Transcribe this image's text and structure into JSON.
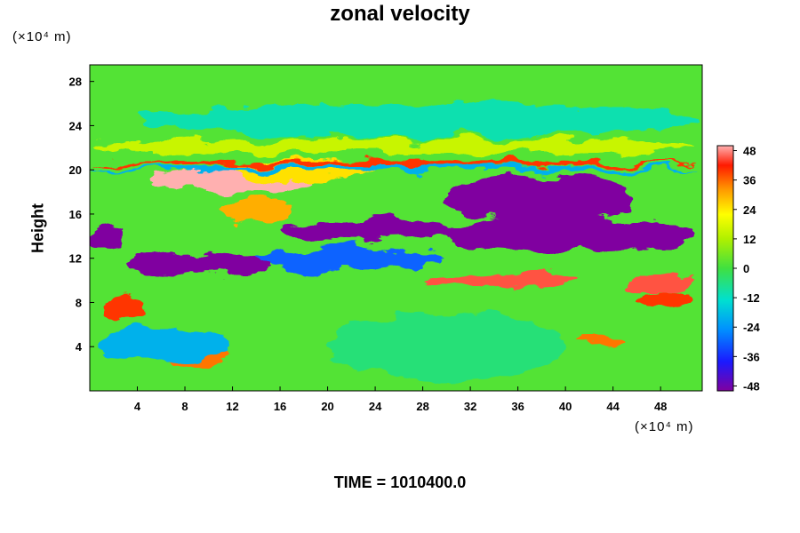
{
  "chart_data": {
    "type": "heatmap",
    "title": "zonal velocity",
    "ylabel": "Height",
    "y_unit": "(×10⁴ m)",
    "x_unit": "(×10⁴ m)",
    "time_label": "TIME = 1010400.0",
    "xlim": [
      0,
      51.5
    ],
    "ylim": [
      0,
      29.5
    ],
    "x_ticks": [
      "4",
      "8",
      "12",
      "16",
      "20",
      "24",
      "28",
      "32",
      "36",
      "40",
      "44",
      "48"
    ],
    "y_ticks": [
      "4",
      "8",
      "12",
      "16",
      "20",
      "24",
      "28"
    ],
    "colorbar": {
      "range": [
        -50,
        50
      ],
      "ticks": [
        "48",
        "36",
        "24",
        "12",
        "0",
        "-12",
        "-24",
        "-36",
        "-48"
      ]
    },
    "features": [
      {
        "x": [
          5,
          19
        ],
        "y": [
          18,
          20
        ],
        "value": 50
      },
      {
        "x": [
          11,
          17
        ],
        "y": [
          15,
          17.5
        ],
        "value": 30
      },
      {
        "x": [
          12,
          24
        ],
        "y": [
          19,
          21
        ],
        "value": 25
      },
      {
        "x": [
          6,
          12
        ],
        "y": [
          2,
          5
        ],
        "value": 35
      },
      {
        "x": [
          1,
          5
        ],
        "y": [
          6.5,
          8.5
        ],
        "value": 40
      },
      {
        "x": [
          28,
          41
        ],
        "y": [
          9.5,
          10.8
        ],
        "value": 45
      },
      {
        "x": [
          45,
          51
        ],
        "y": [
          9,
          10.5
        ],
        "value": 45
      },
      {
        "x": [
          41,
          45
        ],
        "y": [
          4,
          5
        ],
        "value": 35
      },
      {
        "x": [
          46,
          51
        ],
        "y": [
          7.5,
          9
        ],
        "value": 40
      },
      {
        "x": [
          3,
          15
        ],
        "y": [
          10.5,
          12.5
        ],
        "value": -50
      },
      {
        "x": [
          0,
          3
        ],
        "y": [
          12.5,
          15
        ],
        "value": -50
      },
      {
        "x": [
          16,
          32
        ],
        "y": [
          13.5,
          15.5
        ],
        "value": -50
      },
      {
        "x": [
          29,
          51
        ],
        "y": [
          12.5,
          16
        ],
        "value": -50
      },
      {
        "x": [
          30,
          46
        ],
        "y": [
          15.5,
          19.5
        ],
        "value": -50
      },
      {
        "x": [
          14,
          30
        ],
        "y": [
          11,
          13
        ],
        "value": -30
      },
      {
        "x": [
          0,
          51
        ],
        "y": [
          19.8,
          20.3
        ],
        "value": -20
      },
      {
        "x": [
          0,
          51
        ],
        "y": [
          20.3,
          20.8
        ],
        "value": 40
      },
      {
        "x": [
          0,
          51
        ],
        "y": [
          21.5,
          22.8
        ],
        "value": 15
      },
      {
        "x": [
          4,
          51
        ],
        "y": [
          23,
          26
        ],
        "value": -10
      },
      {
        "x": [
          20,
          40
        ],
        "y": [
          1,
          7
        ],
        "value": -5
      },
      {
        "x": [
          1,
          12
        ],
        "y": [
          2.5,
          6
        ],
        "value": -20
      }
    ]
  }
}
